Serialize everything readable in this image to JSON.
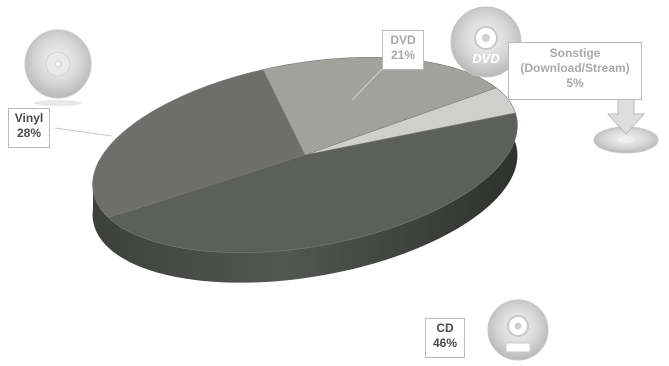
{
  "chart_data": {
    "type": "pie",
    "style": "3d",
    "categories": [
      "Vinyl",
      "DVD",
      "Sonstige (Download/Stream)",
      "CD"
    ],
    "values": [
      28,
      21,
      5,
      46
    ],
    "value_labels": [
      "28%",
      "21%",
      "5%",
      "46%"
    ],
    "labels": {
      "vinyl": {
        "name": "Vinyl",
        "pct": "28%"
      },
      "dvd": {
        "name": "DVD",
        "pct": "21%"
      },
      "other": {
        "name_line1": "Sonstige",
        "name_line2": "(Download/Stream)",
        "pct": "5%"
      },
      "cd": {
        "name": "CD",
        "pct": "46%"
      }
    },
    "icons": [
      "vinyl-disc-icon",
      "dvd-disc-icon",
      "download-disc-icon",
      "cd-disc-icon"
    ],
    "colors": {
      "vinyl": "#6e6f6c",
      "dvd": "#a1a19d",
      "other": "#cfd0ce",
      "cd": "#5d5f5b",
      "side": "#454744"
    }
  }
}
